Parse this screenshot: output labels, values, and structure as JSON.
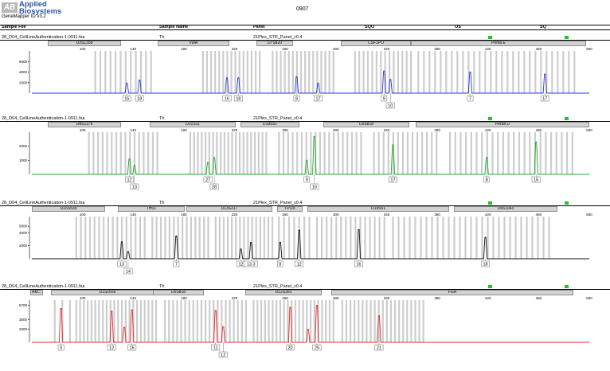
{
  "header": {
    "logo_mark": "AB",
    "logo_line1": "Applied",
    "logo_line2": "Biosystems",
    "app_version": "GeneMapper ID v3.2",
    "run_title": "0907"
  },
  "columns": [
    "Sample File",
    "Sample Name",
    "Panel",
    "SQO",
    "OS",
    "SQ"
  ],
  "colors": {
    "quality_ok": "#21c52a",
    "bin": "#c8c8c8",
    "marker_fill": "#d2d2d2"
  },
  "panels": [
    {
      "sample_file": "28_D04_CellLineAuthentication-1-0911.fsa",
      "sample_name": "Th",
      "panel": "21Plex_STR_Panel_v0.4",
      "color": "#2a3ad6",
      "markers": [
        "D3S1358",
        "vWA",
        "D7S820",
        "CSF1PO",
        "Penta E"
      ],
      "chart_data": {
        "type": "line",
        "xlabel": "",
        "ylabel": "",
        "xlim": [
          60,
          500
        ],
        "x_ticks": [
          100,
          140,
          180,
          220,
          260,
          300,
          340,
          380,
          420,
          460,
          500
        ],
        "ylim": [
          0,
          8000
        ],
        "y_ticks": [
          2000,
          4000,
          6000
        ],
        "peaks": [
          {
            "x": 135,
            "y": 1900
          },
          {
            "x": 145,
            "y": 2500
          },
          {
            "x": 214,
            "y": 2900
          },
          {
            "x": 223,
            "y": 2900
          },
          {
            "x": 269,
            "y": 3100
          },
          {
            "x": 286,
            "y": 1900
          },
          {
            "x": 338,
            "y": 4200
          },
          {
            "x": 343,
            "y": 2600
          },
          {
            "x": 406,
            "y": 4000
          },
          {
            "x": 465,
            "y": 3600
          }
        ],
        "allele_labels": [
          {
            "x": 135,
            "label": "15",
            "row": 0
          },
          {
            "x": 145,
            "label": "18",
            "row": 0
          },
          {
            "x": 214,
            "label": "16",
            "row": 0
          },
          {
            "x": 223,
            "label": "18",
            "row": 0
          },
          {
            "x": 269,
            "label": "8",
            "row": 0
          },
          {
            "x": 286,
            "label": "17",
            "row": 0
          },
          {
            "x": 338,
            "label": "9",
            "row": 0
          },
          {
            "x": 343,
            "label": "10",
            "row": 1
          },
          {
            "x": 406,
            "label": "7",
            "row": 0
          },
          {
            "x": 465,
            "label": "17",
            "row": 0
          }
        ]
      }
    },
    {
      "sample_file": "28_D04_CellLineAuthentication-1-0911.fsa",
      "sample_name": "Th",
      "panel": "21Plex_STR_Panel_v0.4",
      "color": "#21a82e",
      "markers": [
        "D8S1179",
        "D21S11",
        "D18S51",
        "D5S818",
        "Penta D"
      ],
      "chart_data": {
        "type": "line",
        "xlabel": "",
        "ylabel": "",
        "xlim": [
          60,
          500
        ],
        "x_ticks": [
          100,
          140,
          180,
          220,
          260,
          300,
          340,
          380,
          420,
          460,
          500
        ],
        "ylim": [
          0,
          3000
        ],
        "y_ticks": [
          1000,
          2000
        ],
        "peaks": [
          {
            "x": 137,
            "y": 1100
          },
          {
            "x": 141,
            "y": 650
          },
          {
            "x": 199,
            "y": 850
          },
          {
            "x": 204,
            "y": 1200
          },
          {
            "x": 277,
            "y": 1000
          },
          {
            "x": 283,
            "y": 2700
          },
          {
            "x": 345,
            "y": 2100
          },
          {
            "x": 419,
            "y": 1200
          },
          {
            "x": 458,
            "y": 2300
          }
        ],
        "allele_labels": [
          {
            "x": 137,
            "label": "12",
            "row": 0
          },
          {
            "x": 141,
            "label": "13",
            "row": 1
          },
          {
            "x": 199,
            "label": "27",
            "row": 0
          },
          {
            "x": 204,
            "label": "28",
            "row": 1
          },
          {
            "x": 277,
            "label": "9",
            "row": 0
          },
          {
            "x": 283,
            "label": "10",
            "row": 1
          },
          {
            "x": 345,
            "label": "17",
            "row": 0
          },
          {
            "x": 419,
            "label": "8",
            "row": 0
          },
          {
            "x": 458,
            "label": "15",
            "row": 0
          }
        ]
      }
    },
    {
      "sample_file": "28_D04_CellLineAuthentication-1-0911.fsa",
      "sample_name": "Th",
      "panel": "21Plex_STR_Panel_v0.4",
      "color": "#111111",
      "markers": [
        "D16S539",
        "TH01",
        "D13S317",
        "TPOX",
        "D19S51",
        "D651043"
      ],
      "chart_data": {
        "type": "line",
        "xlabel": "",
        "ylabel": "",
        "xlim": [
          60,
          500
        ],
        "x_ticks": [
          100,
          140,
          180,
          220,
          260,
          300,
          340,
          380,
          420,
          460,
          500
        ],
        "ylim": [
          0,
          6500
        ],
        "y_ticks": [
          2000,
          4000,
          5000
        ],
        "peaks": [
          {
            "x": 131,
            "y": 2600
          },
          {
            "x": 136,
            "y": 1100
          },
          {
            "x": 174,
            "y": 3500
          },
          {
            "x": 225,
            "y": 1500
          },
          {
            "x": 233,
            "y": 2500
          },
          {
            "x": 256,
            "y": 2500
          },
          {
            "x": 271,
            "y": 4400
          },
          {
            "x": 318,
            "y": 4500
          },
          {
            "x": 418,
            "y": 3300
          }
        ],
        "allele_labels": [
          {
            "x": 131,
            "label": "13",
            "row": 0
          },
          {
            "x": 136,
            "label": "14",
            "row": 1
          },
          {
            "x": 174,
            "label": "7",
            "row": 0
          },
          {
            "x": 225,
            "label": "12",
            "row": 0
          },
          {
            "x": 233,
            "label": "13.3",
            "row": 0
          },
          {
            "x": 256,
            "label": "8",
            "row": 0
          },
          {
            "x": 271,
            "label": "12",
            "row": 0
          },
          {
            "x": 318,
            "label": "16",
            "row": 0
          },
          {
            "x": 418,
            "label": "18",
            "row": 0
          }
        ]
      }
    },
    {
      "sample_file": "28_D04_CellLineAuthentication-1-0911.fsa",
      "sample_name": "Th",
      "panel": "21Plex_STR_Panel_v0.4",
      "color": "#e02a2a",
      "markers": [
        "AM...",
        "D1S1656",
        "D6S818",
        "D12S391",
        "FGA"
      ],
      "chart_data": {
        "type": "line",
        "xlabel": "",
        "ylabel": "",
        "xlim": [
          60,
          500
        ],
        "x_ticks": [
          100,
          140,
          180,
          220,
          260,
          300,
          340,
          380,
          420,
          460,
          500
        ],
        "ylim": [
          0,
          6500
        ],
        "y_ticks": [
          2000,
          3500,
          5700
        ],
        "peaks": [
          {
            "x": 83,
            "y": 5200
          },
          {
            "x": 123,
            "y": 4800
          },
          {
            "x": 133,
            "y": 2300
          },
          {
            "x": 139,
            "y": 5000
          },
          {
            "x": 205,
            "y": 4900
          },
          {
            "x": 211,
            "y": 2400
          },
          {
            "x": 264,
            "y": 5400
          },
          {
            "x": 278,
            "y": 2000
          },
          {
            "x": 285,
            "y": 5700
          },
          {
            "x": 334,
            "y": 4100
          }
        ],
        "allele_labels": [
          {
            "x": 83,
            "label": "X",
            "row": 0
          },
          {
            "x": 123,
            "label": "12",
            "row": 0
          },
          {
            "x": 139,
            "label": "15",
            "row": 0
          },
          {
            "x": 205,
            "label": "11",
            "row": 0
          },
          {
            "x": 211,
            "label": "12",
            "row": 1
          },
          {
            "x": 264,
            "label": "20",
            "row": 0
          },
          {
            "x": 285,
            "label": "25",
            "row": 0
          },
          {
            "x": 334,
            "label": "21",
            "row": 0
          }
        ]
      }
    }
  ]
}
